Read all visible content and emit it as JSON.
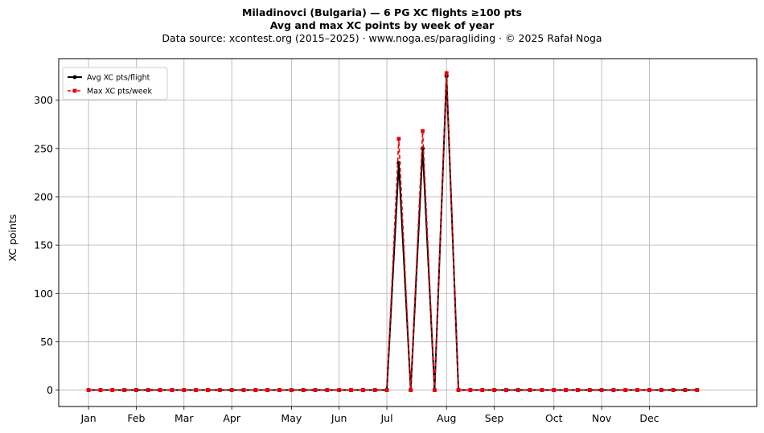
{
  "header": {
    "title_line1": "Miladinovci (Bulgaria)  —  6 PG XC flights ≥100 pts",
    "title_line2": "Avg and max XC points by week of year",
    "subtitle": "Data source: xcontest.org (2015–2025)  ·  www.noga.es/paragliding  ·  © 2025 Rafał Noga"
  },
  "chart_data": {
    "type": "line",
    "ylabel": "XC points",
    "xlabel": "",
    "xlim": [
      -2.5,
      56
    ],
    "ylim": [
      -17,
      343
    ],
    "grid": true,
    "legend_position": "top-left",
    "x_ticks": [
      {
        "label": "Jan",
        "value": 0
      },
      {
        "label": "Feb",
        "value": 4
      },
      {
        "label": "Mar",
        "value": 8
      },
      {
        "label": "Apr",
        "value": 12
      },
      {
        "label": "May",
        "value": 17
      },
      {
        "label": "Jun",
        "value": 21
      },
      {
        "label": "Jul",
        "value": 25
      },
      {
        "label": "Aug",
        "value": 30
      },
      {
        "label": "Sep",
        "value": 34
      },
      {
        "label": "Oct",
        "value": 39
      },
      {
        "label": "Nov",
        "value": 43
      },
      {
        "label": "Dec",
        "value": 47
      }
    ],
    "y_ticks": [
      0,
      50,
      100,
      150,
      200,
      250,
      300
    ],
    "x": [
      0,
      1,
      2,
      3,
      4,
      5,
      6,
      7,
      8,
      9,
      10,
      11,
      12,
      13,
      14,
      15,
      16,
      17,
      18,
      19,
      20,
      21,
      22,
      23,
      24,
      25,
      26,
      27,
      28,
      29,
      30,
      31,
      32,
      33,
      34,
      35,
      36,
      37,
      38,
      39,
      40,
      41,
      42,
      43,
      44,
      45,
      46,
      47,
      48,
      49,
      50,
      51
    ],
    "series": [
      {
        "name": "Avg XC pts/flight",
        "color": "#000000",
        "style": "solid",
        "marker": "circle",
        "values": [
          0,
          0,
          0,
          0,
          0,
          0,
          0,
          0,
          0,
          0,
          0,
          0,
          0,
          0,
          0,
          0,
          0,
          0,
          0,
          0,
          0,
          0,
          0,
          0,
          0,
          0,
          235,
          0,
          250,
          0,
          325,
          0,
          0,
          0,
          0,
          0,
          0,
          0,
          0,
          0,
          0,
          0,
          0,
          0,
          0,
          0,
          0,
          0,
          0,
          0,
          0,
          0
        ]
      },
      {
        "name": "Max XC pts/week",
        "color": "#e8000b",
        "style": "dashed",
        "marker": "square",
        "values": [
          0,
          0,
          0,
          0,
          0,
          0,
          0,
          0,
          0,
          0,
          0,
          0,
          0,
          0,
          0,
          0,
          0,
          0,
          0,
          0,
          0,
          0,
          0,
          0,
          0,
          0,
          260,
          0,
          268,
          0,
          328,
          0,
          0,
          0,
          0,
          0,
          0,
          0,
          0,
          0,
          0,
          0,
          0,
          0,
          0,
          0,
          0,
          0,
          0,
          0,
          0,
          0
        ]
      }
    ]
  }
}
